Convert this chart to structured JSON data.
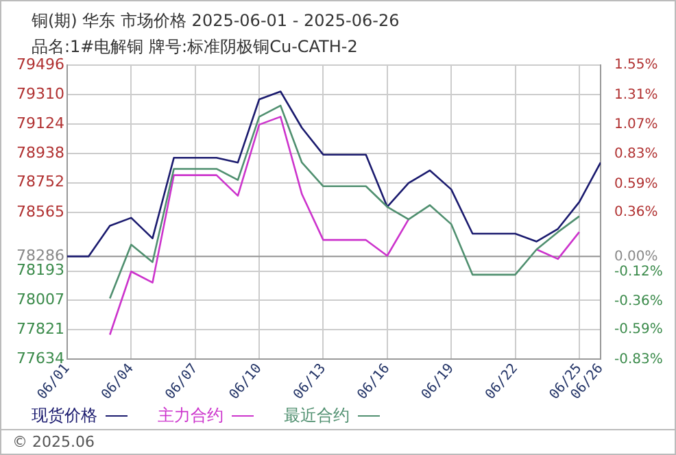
{
  "chart_data": {
    "type": "line",
    "title": "铜(期) 华东 市场价格 2025-06-01 - 2025-06-26",
    "subtitle": "品名:1#电解铜 牌号:标准阴极铜Cu-CATH-2",
    "x": [
      "--06-01",
      "--06-02",
      "--06-03",
      "--06-04",
      "--06-05",
      "--06-06",
      "--06-07",
      "--06-08",
      "--06-09",
      "--06-10",
      "--06-11",
      "--06-12",
      "--06-13",
      "--06-14",
      "--06-15",
      "--06-16",
      "--06-17",
      "--06-18",
      "--06-19",
      "--06-20",
      "--06-21",
      "--06-22",
      "--06-23",
      "--06-24",
      "--06-25",
      "--06-26"
    ],
    "series": [
      {
        "name": "现货价格",
        "color": "#1a1a6e",
        "values": [
          78286,
          78286,
          78480,
          78530,
          78400,
          78910,
          78910,
          78910,
          78880,
          79280,
          79330,
          79100,
          78930,
          78930,
          78930,
          78600,
          78750,
          78830,
          78710,
          78430,
          78430,
          78430,
          78380,
          78460,
          78630,
          78880
        ]
      },
      {
        "name": "主力合约",
        "color": "#cc33cc",
        "values": [
          null,
          null,
          77790,
          78190,
          78120,
          78800,
          78800,
          78800,
          78670,
          79120,
          79170,
          78680,
          78390,
          78390,
          78390,
          78290,
          78520,
          null,
          null,
          null,
          null,
          null,
          78330,
          78270,
          78440,
          null
        ]
      },
      {
        "name": "最近合约",
        "color": "#4f8f6f",
        "values": [
          null,
          null,
          78020,
          78360,
          78250,
          78840,
          78840,
          78840,
          78770,
          79170,
          79240,
          78880,
          78730,
          78730,
          78730,
          78600,
          78520,
          78610,
          78490,
          78170,
          78170,
          78170,
          78330,
          78440,
          78540,
          null
        ]
      }
    ],
    "xlim": [
      "--06-01",
      "--06-26"
    ],
    "xticks": [
      {
        "value": "--06-01",
        "label": "06/01"
      },
      {
        "value": "--06-04",
        "label": "06/04"
      },
      {
        "value": "--06-07",
        "label": "06/07"
      },
      {
        "value": "--06-10",
        "label": "06/10"
      },
      {
        "value": "--06-13",
        "label": "06/13"
      },
      {
        "value": "--06-16",
        "label": "06/16"
      },
      {
        "value": "--06-19",
        "label": "06/19"
      },
      {
        "value": "--06-22",
        "label": "06/22"
      },
      {
        "value": "--06-25",
        "label": "06/25"
      },
      {
        "value": "--06-26",
        "label": "06/26"
      }
    ],
    "ylim": [
      77634,
      79496
    ],
    "yticks": [
      77634,
      77821,
      78007,
      78193,
      78286,
      78565,
      78752,
      78938,
      79124,
      79310,
      79496
    ],
    "y2lim": [
      -0.83,
      1.55
    ],
    "y2ticks": [
      {
        "value": -0.83,
        "label": "-0.83%"
      },
      {
        "value": -0.59,
        "label": "-0.59%"
      },
      {
        "value": -0.36,
        "label": "-0.36%"
      },
      {
        "value": -0.12,
        "label": "-0.12%"
      },
      {
        "value": 0,
        "label": "0.00%"
      },
      {
        "value": 0.36,
        "label": "0.36%"
      },
      {
        "value": 0.59,
        "label": "0.59%"
      },
      {
        "value": 0.83,
        "label": "0.83%"
      },
      {
        "value": 1.07,
        "label": "1.07%"
      },
      {
        "value": 1.31,
        "label": "1.31%"
      },
      {
        "value": 1.55,
        "label": "1.55%"
      }
    ],
    "ref_lines": [
      {
        "axis": "y",
        "value": 78286,
        "color": "#999999"
      }
    ],
    "annotations": [
      "© 2025.06"
    ],
    "grid": true,
    "legend": "bottom left",
    "marker": "none",
    "line_style": "solid"
  }
}
